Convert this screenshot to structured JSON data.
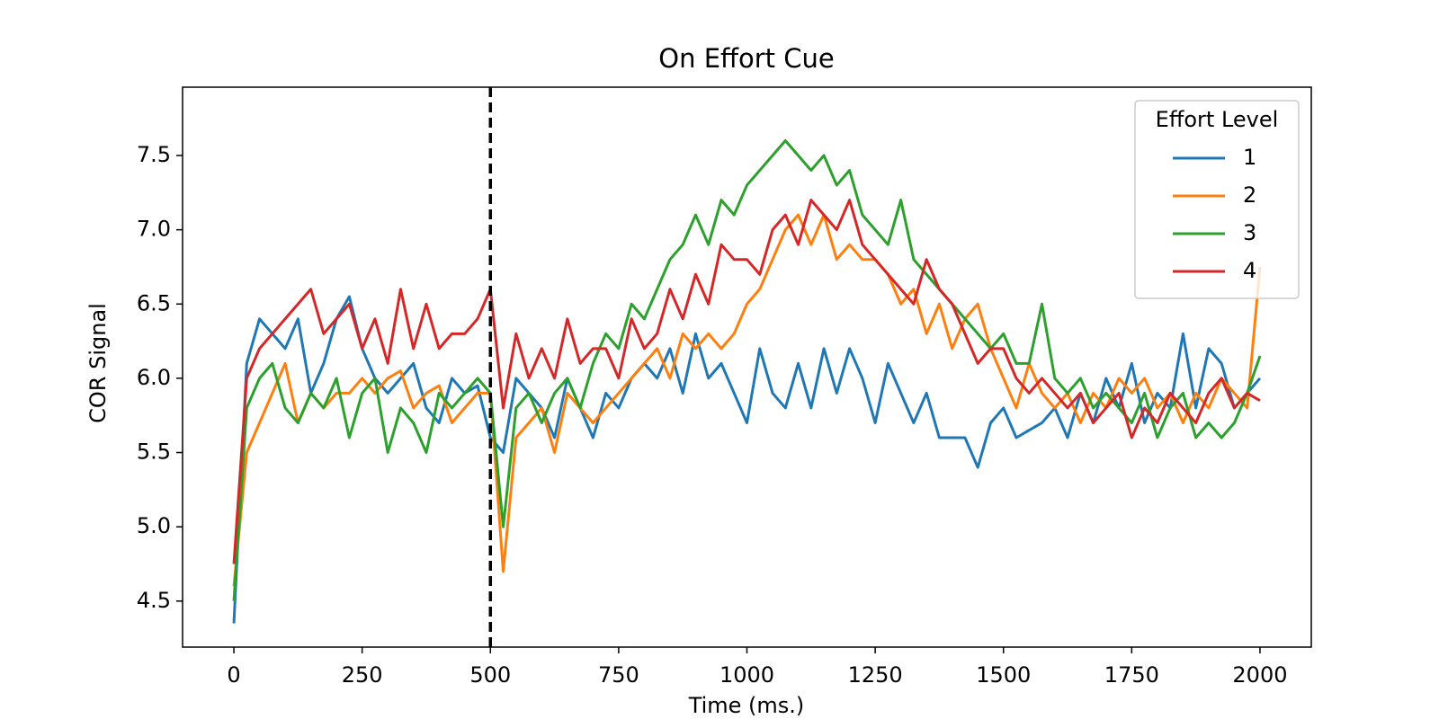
{
  "chart_data": {
    "type": "line",
    "title": "On Effort Cue",
    "x_label": "Time (ms.)",
    "y_label": "COR Signal",
    "legend_title": "Effort Level",
    "legend": "upper right",
    "vline": 500,
    "xlim": [
      -100,
      2100
    ],
    "ylim": [
      4.19,
      7.96
    ],
    "xticks": [
      0,
      250,
      500,
      750,
      1000,
      1250,
      1500,
      1750,
      2000
    ],
    "yticks": [
      4.5,
      {
        "value": 5,
        "label": "5.0"
      },
      5.5,
      {
        "value": 6,
        "label": "6.0"
      },
      6.5,
      {
        "value": 7,
        "label": "7.0"
      },
      7.5
    ],
    "x": [
      0,
      25,
      50,
      75,
      100,
      125,
      150,
      175,
      200,
      225,
      250,
      275,
      300,
      325,
      350,
      375,
      400,
      425,
      450,
      475,
      500,
      525,
      550,
      575,
      600,
      625,
      650,
      675,
      700,
      725,
      750,
      775,
      800,
      825,
      850,
      875,
      900,
      925,
      950,
      975,
      1000,
      1025,
      1050,
      1075,
      1100,
      1125,
      1150,
      1175,
      1200,
      1225,
      1250,
      1275,
      1300,
      1325,
      1350,
      1375,
      1400,
      1425,
      1450,
      1475,
      1500,
      1525,
      1550,
      1575,
      1600,
      1625,
      1650,
      1675,
      1700,
      1725,
      1750,
      1775,
      1800,
      1825,
      1850,
      1875,
      1900,
      1925,
      1950,
      1975,
      2000
    ],
    "series": [
      {
        "name": "1",
        "color": "#1f77b4",
        "values": [
          4.35,
          6.1,
          6.4,
          6.3,
          6.2,
          6.4,
          5.9,
          6.1,
          6.4,
          6.55,
          6.2,
          6.0,
          5.9,
          6.0,
          6.1,
          5.8,
          5.7,
          6.0,
          5.9,
          5.95,
          5.6,
          5.5,
          6.0,
          5.9,
          5.8,
          5.6,
          6.0,
          5.8,
          5.6,
          5.9,
          5.8,
          6.0,
          6.1,
          6.0,
          6.2,
          5.9,
          6.3,
          6.0,
          6.1,
          5.9,
          5.7,
          6.2,
          5.9,
          5.8,
          6.1,
          5.8,
          6.2,
          5.9,
          6.2,
          6.0,
          5.7,
          6.1,
          5.9,
          5.7,
          5.9,
          5.6,
          5.6,
          5.6,
          5.4,
          5.7,
          5.8,
          5.6,
          5.65,
          5.7,
          5.8,
          5.6,
          5.9,
          5.7,
          6.0,
          5.8,
          6.1,
          5.7,
          5.9,
          5.8,
          6.3,
          5.8,
          6.2,
          6.1,
          5.8,
          5.9,
          6.0
        ]
      },
      {
        "name": "2",
        "color": "#ff7f0e",
        "values": [
          4.6,
          5.5,
          5.7,
          5.9,
          6.1,
          5.7,
          5.9,
          5.8,
          5.9,
          5.9,
          6.0,
          5.9,
          6.0,
          6.05,
          5.8,
          5.9,
          5.95,
          5.7,
          5.8,
          5.9,
          5.9,
          4.7,
          5.6,
          5.7,
          5.8,
          5.5,
          5.9,
          5.8,
          5.7,
          5.8,
          5.9,
          6.0,
          6.1,
          6.2,
          6.0,
          6.3,
          6.2,
          6.3,
          6.2,
          6.3,
          6.5,
          6.6,
          6.8,
          7.0,
          7.1,
          6.9,
          7.1,
          6.8,
          6.9,
          6.8,
          6.8,
          6.7,
          6.5,
          6.6,
          6.3,
          6.5,
          6.2,
          6.4,
          6.5,
          6.2,
          6.0,
          5.8,
          6.1,
          5.9,
          5.8,
          5.9,
          5.7,
          5.9,
          5.8,
          6.0,
          5.9,
          6.0,
          5.8,
          5.9,
          5.7,
          5.9,
          5.8,
          6.0,
          5.9,
          5.8,
          6.75
        ]
      },
      {
        "name": "3",
        "color": "#2ca02c",
        "values": [
          4.5,
          5.8,
          6.0,
          6.1,
          5.8,
          5.7,
          5.9,
          5.8,
          6.0,
          5.6,
          5.9,
          6.0,
          5.5,
          5.8,
          5.7,
          5.5,
          5.9,
          5.8,
          5.9,
          6.0,
          5.9,
          5.0,
          5.8,
          5.9,
          5.7,
          5.9,
          6.0,
          5.8,
          6.1,
          6.3,
          6.2,
          6.5,
          6.4,
          6.6,
          6.8,
          6.9,
          7.1,
          6.9,
          7.2,
          7.1,
          7.3,
          7.4,
          7.5,
          7.6,
          7.5,
          7.4,
          7.5,
          7.3,
          7.4,
          7.1,
          7.0,
          6.9,
          7.2,
          6.8,
          6.7,
          6.6,
          6.5,
          6.4,
          6.3,
          6.2,
          6.3,
          6.1,
          6.1,
          6.5,
          6.0,
          5.9,
          6.0,
          5.8,
          5.9,
          5.8,
          5.7,
          5.9,
          5.6,
          5.8,
          5.9,
          5.6,
          5.7,
          5.6,
          5.7,
          5.9,
          6.15
        ]
      },
      {
        "name": "4",
        "color": "#d62728",
        "values": [
          4.75,
          6.0,
          6.2,
          6.3,
          6.4,
          6.5,
          6.6,
          6.3,
          6.4,
          6.5,
          6.2,
          6.4,
          6.1,
          6.6,
          6.2,
          6.5,
          6.2,
          6.3,
          6.3,
          6.4,
          6.6,
          5.8,
          6.3,
          6.0,
          6.2,
          6.0,
          6.4,
          6.1,
          6.2,
          6.2,
          6.0,
          6.4,
          6.2,
          6.3,
          6.6,
          6.4,
          6.7,
          6.5,
          6.9,
          6.8,
          6.8,
          6.7,
          7.0,
          7.1,
          6.9,
          7.2,
          7.1,
          7.0,
          7.2,
          6.9,
          6.8,
          6.7,
          6.6,
          6.5,
          6.8,
          6.6,
          6.5,
          6.3,
          6.1,
          6.2,
          6.2,
          6.0,
          5.9,
          6.0,
          5.9,
          5.8,
          5.9,
          5.7,
          5.8,
          5.9,
          5.6,
          5.8,
          5.7,
          5.9,
          5.8,
          5.7,
          5.9,
          6.0,
          5.8,
          5.9,
          5.85
        ]
      }
    ]
  }
}
